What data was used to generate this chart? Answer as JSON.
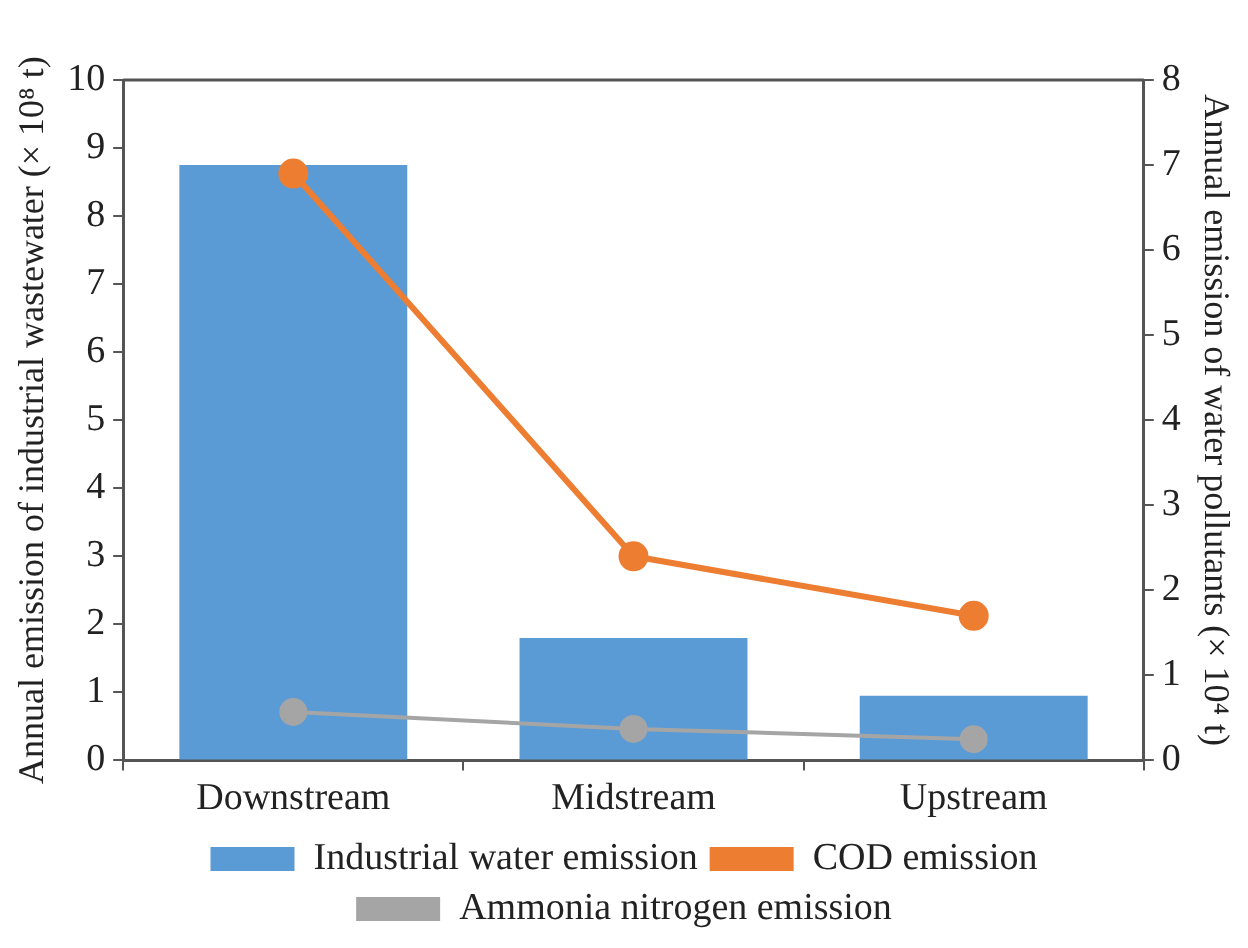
{
  "chart_data": {
    "type": "bar",
    "categories": [
      "Downstream",
      "Midstream",
      "Upstream"
    ],
    "ylabel": "Annual emission of industrial wastewater (× 10⁸ t)",
    "y2label": "Annual emission of water pollutants (× 10⁴ t)",
    "ylim": [
      0,
      10
    ],
    "yticks": [
      0,
      1,
      2,
      3,
      4,
      5,
      6,
      7,
      8,
      9,
      10
    ],
    "y2lim": [
      0,
      8
    ],
    "y2ticks": [
      0,
      1,
      2,
      3,
      4,
      5,
      6,
      7,
      8
    ],
    "grid": false,
    "legend": "bottom",
    "marker": "circle",
    "series": [
      {
        "name": "Industrial water emission",
        "color": "#5b9bd5",
        "values": [
          8.75,
          1.8,
          0.95
        ]
      },
      {
        "name": "COD emission",
        "type": "line",
        "axis": "y2",
        "color": "#ed7d31",
        "values": [
          6.9,
          2.4,
          1.7
        ]
      },
      {
        "name": "Ammonia nitrogen emission",
        "type": "line",
        "axis": "y2",
        "color": "#a5a5a5",
        "values": [
          0.57,
          0.37,
          0.25
        ]
      }
    ]
  }
}
